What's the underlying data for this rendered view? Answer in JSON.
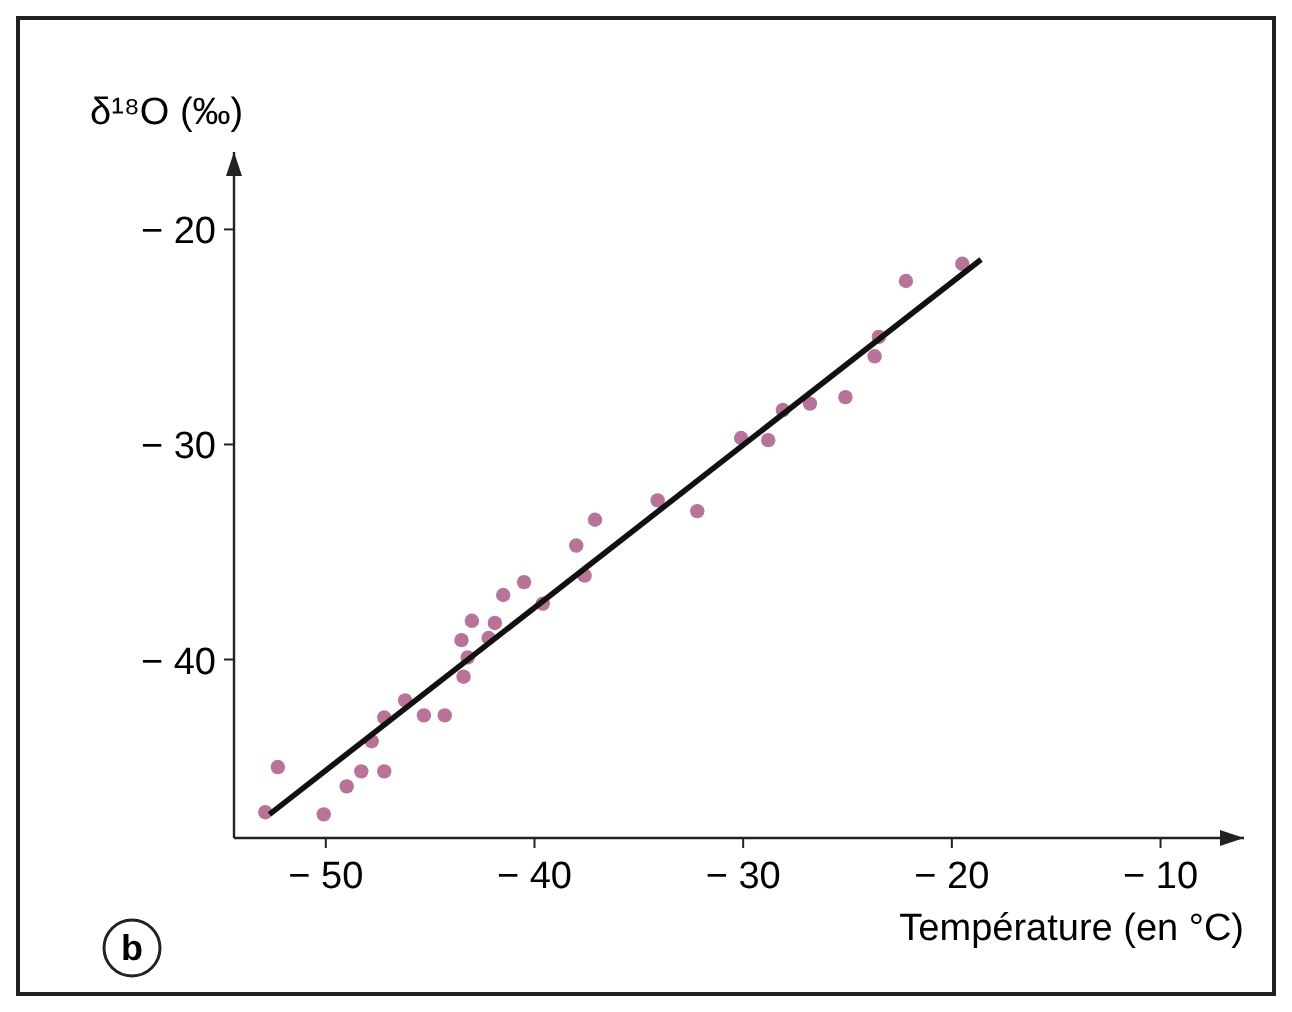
{
  "chart_data": {
    "type": "scatter",
    "xlabel": "Température (en °C)",
    "ylabel": "δ¹⁸O (‰)",
    "annotations": [
      "b"
    ],
    "xlim": [
      -54.4,
      -6
    ],
    "ylim": [
      -48.3,
      -16.4
    ],
    "xticks": [
      {
        "value": -50,
        "label": "− 50"
      },
      {
        "value": -40,
        "label": "− 40"
      },
      {
        "value": -30,
        "label": "− 30"
      },
      {
        "value": -20,
        "label": "− 20"
      },
      {
        "value": -10,
        "label": "− 10"
      }
    ],
    "yticks": [
      {
        "value": -20,
        "label": "− 20"
      },
      {
        "value": -30,
        "label": "− 30"
      },
      {
        "value": -40,
        "label": "− 40"
      }
    ],
    "marker": "circle",
    "series": [
      {
        "color": "#b0648e",
        "x": [
          -52.9,
          -52.3,
          -50.1,
          -49.0,
          -48.3,
          -47.2,
          -47.8,
          -47.2,
          -46.2,
          -45.3,
          -44.3,
          -43.4,
          -43.2,
          -43.5,
          -43.0,
          -42.2,
          -41.9,
          -41.5,
          -40.5,
          -39.6,
          -38.0,
          -37.6,
          -37.1,
          -34.1,
          -32.2,
          -30.1,
          -28.8,
          -28.1,
          -26.8,
          -25.1,
          -23.7,
          -23.5,
          -22.2,
          -19.5
        ],
        "values": [
          -47.1,
          -45.0,
          -47.2,
          -45.9,
          -45.2,
          -45.2,
          -43.8,
          -42.7,
          -41.9,
          -42.6,
          -42.6,
          -40.8,
          -39.9,
          -39.1,
          -38.2,
          -39.0,
          -38.3,
          -37.0,
          -36.4,
          -37.4,
          -34.7,
          -36.1,
          -33.5,
          -32.6,
          -33.1,
          -29.7,
          -29.8,
          -28.4,
          -28.1,
          -27.8,
          -25.9,
          -25.0,
          -22.4,
          -21.6
        ]
      },
      {
        "type": "line",
        "color": "#111111",
        "marker": "none",
        "line_style": "solid",
        "x": [
          -52.7,
          -18.6
        ],
        "values": [
          -47.2,
          -21.4
        ]
      }
    ]
  }
}
